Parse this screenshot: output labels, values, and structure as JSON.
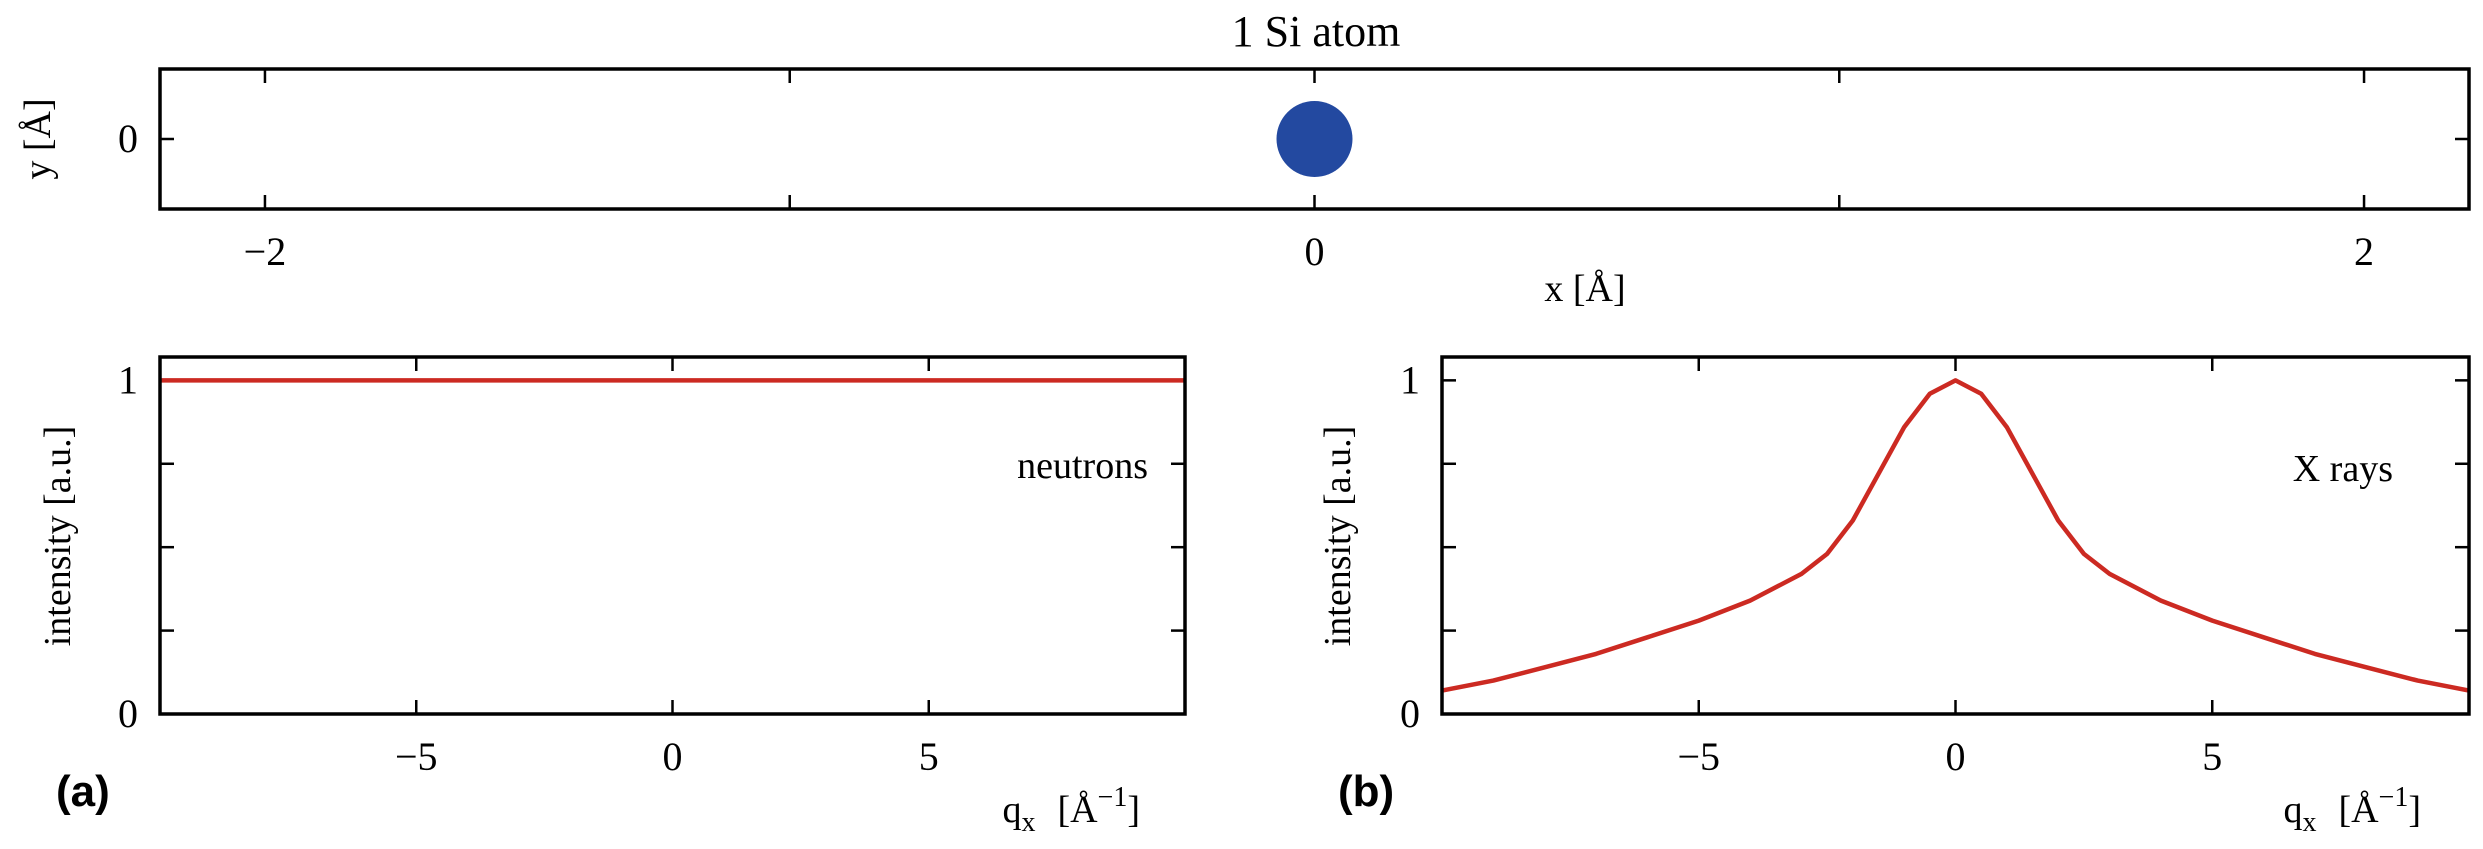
{
  "colors": {
    "atom": "#2349A0",
    "curve": "#CC2A22",
    "axes": "#000000"
  },
  "chart_data": [
    {
      "type": "scatter",
      "title": "1 Si atom",
      "xlabel": "x  [Å]",
      "ylabel": "y  [Å]",
      "xlim": [
        -2.2,
        2.2
      ],
      "ylim": [
        -0.27,
        0.27
      ],
      "xticks": [
        -2,
        -1,
        0,
        1,
        2
      ],
      "xtick_labels": [
        "−2",
        "",
        "0",
        "",
        "2"
      ],
      "yticks": [
        0
      ],
      "ytick_labels": [
        "0"
      ],
      "points": [
        {
          "x": 0,
          "y": 0
        }
      ],
      "legend": "none",
      "grid": false
    },
    {
      "type": "line",
      "panel_label": "(a)",
      "annotation": "neutrons",
      "xlabel_main": "q",
      "xlabel_sub": "x",
      "xlabel_unit": "[Å",
      "xlabel_exp": "−1",
      "xlabel_close": "]",
      "ylabel": "intensity [a.u.]",
      "xlim": [
        -10,
        10
      ],
      "ylim": [
        0,
        1.07
      ],
      "xticks": [
        -5,
        0,
        5
      ],
      "xtick_labels": [
        "−5",
        "0",
        "5"
      ],
      "yticks": [
        0,
        1
      ],
      "ytick_labels": [
        "0",
        "1"
      ],
      "series": [
        {
          "x": [
            -10,
            -5,
            0,
            5,
            10
          ],
          "y": [
            1,
            1,
            1,
            1,
            1
          ]
        }
      ],
      "legend": "none",
      "grid": false
    },
    {
      "type": "line",
      "panel_label": "(b)",
      "annotation": "X rays",
      "xlabel_main": "q",
      "xlabel_sub": "x",
      "xlabel_unit": "[Å",
      "xlabel_exp": "−1",
      "xlabel_close": "]",
      "ylabel": "intensity [a.u.]",
      "xlim": [
        -10,
        10
      ],
      "ylim": [
        0,
        1.07
      ],
      "xticks": [
        -5,
        0,
        5
      ],
      "xtick_labels": [
        "−5",
        "0",
        "5"
      ],
      "yticks": [
        0,
        1
      ],
      "ytick_labels": [
        "0",
        "1"
      ],
      "series": [
        {
          "x": [
            -10,
            -9,
            -8,
            -7,
            -6,
            -5,
            -4,
            -3,
            -2.5,
            -2,
            -1.5,
            -1,
            -0.5,
            0,
            0.5,
            1,
            1.5,
            2,
            2.5,
            3,
            4,
            5,
            6,
            7,
            8,
            9,
            10
          ],
          "y": [
            0.07,
            0.1,
            0.14,
            0.18,
            0.23,
            0.28,
            0.34,
            0.42,
            0.48,
            0.58,
            0.72,
            0.86,
            0.96,
            1.0,
            0.96,
            0.86,
            0.72,
            0.58,
            0.48,
            0.42,
            0.34,
            0.28,
            0.23,
            0.18,
            0.14,
            0.1,
            0.07
          ]
        }
      ],
      "legend": "none",
      "grid": false
    }
  ]
}
